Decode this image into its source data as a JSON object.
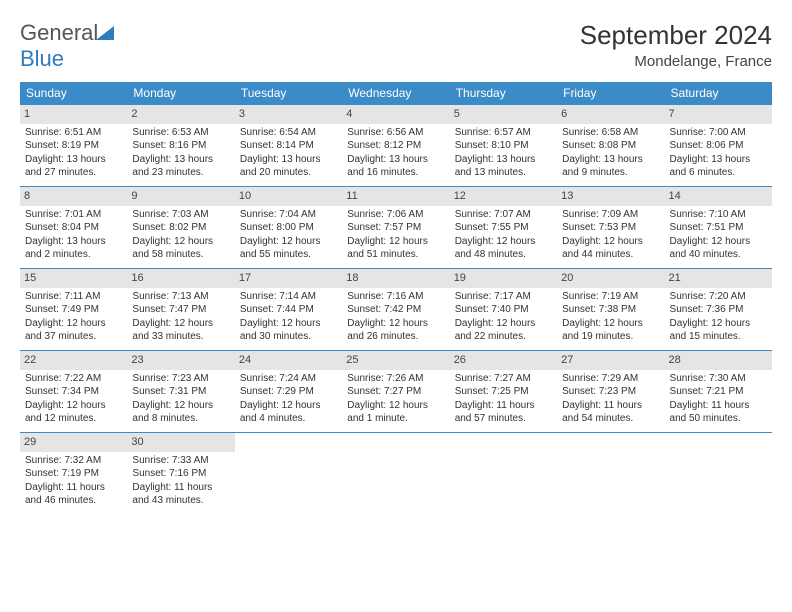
{
  "logo": {
    "text1": "General",
    "text2": "Blue"
  },
  "title": "September 2024",
  "location": "Mondelange, France",
  "header_bg": "#3b8bc8",
  "day_header_bg": "#e5e5e5",
  "weekdays": [
    "Sunday",
    "Monday",
    "Tuesday",
    "Wednesday",
    "Thursday",
    "Friday",
    "Saturday"
  ],
  "days": [
    {
      "n": "1",
      "sr": "6:51 AM",
      "ss": "8:19 PM",
      "dl": "13 hours and 27 minutes."
    },
    {
      "n": "2",
      "sr": "6:53 AM",
      "ss": "8:16 PM",
      "dl": "13 hours and 23 minutes."
    },
    {
      "n": "3",
      "sr": "6:54 AM",
      "ss": "8:14 PM",
      "dl": "13 hours and 20 minutes."
    },
    {
      "n": "4",
      "sr": "6:56 AM",
      "ss": "8:12 PM",
      "dl": "13 hours and 16 minutes."
    },
    {
      "n": "5",
      "sr": "6:57 AM",
      "ss": "8:10 PM",
      "dl": "13 hours and 13 minutes."
    },
    {
      "n": "6",
      "sr": "6:58 AM",
      "ss": "8:08 PM",
      "dl": "13 hours and 9 minutes."
    },
    {
      "n": "7",
      "sr": "7:00 AM",
      "ss": "8:06 PM",
      "dl": "13 hours and 6 minutes."
    },
    {
      "n": "8",
      "sr": "7:01 AM",
      "ss": "8:04 PM",
      "dl": "13 hours and 2 minutes."
    },
    {
      "n": "9",
      "sr": "7:03 AM",
      "ss": "8:02 PM",
      "dl": "12 hours and 58 minutes."
    },
    {
      "n": "10",
      "sr": "7:04 AM",
      "ss": "8:00 PM",
      "dl": "12 hours and 55 minutes."
    },
    {
      "n": "11",
      "sr": "7:06 AM",
      "ss": "7:57 PM",
      "dl": "12 hours and 51 minutes."
    },
    {
      "n": "12",
      "sr": "7:07 AM",
      "ss": "7:55 PM",
      "dl": "12 hours and 48 minutes."
    },
    {
      "n": "13",
      "sr": "7:09 AM",
      "ss": "7:53 PM",
      "dl": "12 hours and 44 minutes."
    },
    {
      "n": "14",
      "sr": "7:10 AM",
      "ss": "7:51 PM",
      "dl": "12 hours and 40 minutes."
    },
    {
      "n": "15",
      "sr": "7:11 AM",
      "ss": "7:49 PM",
      "dl": "12 hours and 37 minutes."
    },
    {
      "n": "16",
      "sr": "7:13 AM",
      "ss": "7:47 PM",
      "dl": "12 hours and 33 minutes."
    },
    {
      "n": "17",
      "sr": "7:14 AM",
      "ss": "7:44 PM",
      "dl": "12 hours and 30 minutes."
    },
    {
      "n": "18",
      "sr": "7:16 AM",
      "ss": "7:42 PM",
      "dl": "12 hours and 26 minutes."
    },
    {
      "n": "19",
      "sr": "7:17 AM",
      "ss": "7:40 PM",
      "dl": "12 hours and 22 minutes."
    },
    {
      "n": "20",
      "sr": "7:19 AM",
      "ss": "7:38 PM",
      "dl": "12 hours and 19 minutes."
    },
    {
      "n": "21",
      "sr": "7:20 AM",
      "ss": "7:36 PM",
      "dl": "12 hours and 15 minutes."
    },
    {
      "n": "22",
      "sr": "7:22 AM",
      "ss": "7:34 PM",
      "dl": "12 hours and 12 minutes."
    },
    {
      "n": "23",
      "sr": "7:23 AM",
      "ss": "7:31 PM",
      "dl": "12 hours and 8 minutes."
    },
    {
      "n": "24",
      "sr": "7:24 AM",
      "ss": "7:29 PM",
      "dl": "12 hours and 4 minutes."
    },
    {
      "n": "25",
      "sr": "7:26 AM",
      "ss": "7:27 PM",
      "dl": "12 hours and 1 minute."
    },
    {
      "n": "26",
      "sr": "7:27 AM",
      "ss": "7:25 PM",
      "dl": "11 hours and 57 minutes."
    },
    {
      "n": "27",
      "sr": "7:29 AM",
      "ss": "7:23 PM",
      "dl": "11 hours and 54 minutes."
    },
    {
      "n": "28",
      "sr": "7:30 AM",
      "ss": "7:21 PM",
      "dl": "11 hours and 50 minutes."
    },
    {
      "n": "29",
      "sr": "7:32 AM",
      "ss": "7:19 PM",
      "dl": "11 hours and 46 minutes."
    },
    {
      "n": "30",
      "sr": "7:33 AM",
      "ss": "7:16 PM",
      "dl": "11 hours and 43 minutes."
    }
  ],
  "labels": {
    "sunrise": "Sunrise:",
    "sunset": "Sunset:",
    "daylight": "Daylight:"
  }
}
